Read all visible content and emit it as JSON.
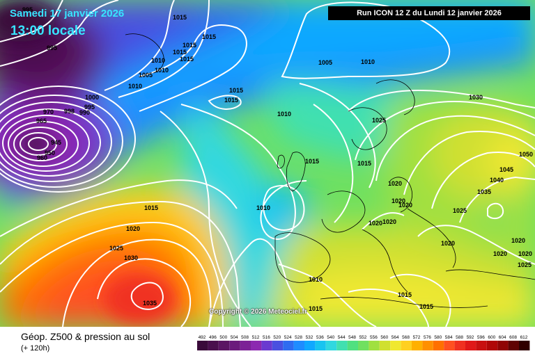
{
  "header": {
    "date": "Samedi 17 janvier 2026",
    "local_time": "13:00 locale",
    "run": "Run ICON 12 Z du Lundi 12 janvier 2026"
  },
  "map": {
    "copyright": "Copyright © 2026 Meteociel.fr",
    "pressure_labels": [
      "995",
      "1015",
      "995",
      "1015",
      "1015",
      "1015",
      "1010",
      "1015",
      "1010",
      "1005",
      "1010",
      "1000",
      "990",
      "995",
      "998",
      "970",
      "965",
      "945",
      "950",
      "960",
      "1015",
      "1015",
      "1005",
      "1010",
      "1030",
      "1010",
      "1025",
      "1015",
      "1015",
      "1020",
      "1010",
      "1020",
      "1020",
      "1020",
      "1020",
      "1050",
      "1045",
      "1040",
      "1035",
      "1025",
      "1020",
      "1020",
      "1020",
      "1020",
      "1025",
      "1015",
      "1020",
      "1025",
      "1030",
      "1035",
      "1010",
      "1015",
      "1015",
      "1015"
    ]
  },
  "footer": {
    "title": "Géop. Z500 & pression au sol",
    "subtitle": "(+ 120h)"
  },
  "legend": {
    "labels": [
      "492",
      "496",
      "500",
      "504",
      "508",
      "512",
      "516",
      "520",
      "524",
      "528",
      "532",
      "536",
      "540",
      "544",
      "548",
      "552",
      "556",
      "560",
      "564",
      "568",
      "572",
      "576",
      "580",
      "584",
      "588",
      "592",
      "596",
      "600",
      "604",
      "608",
      "612"
    ],
    "colors": [
      "#3a0a3a",
      "#4a0f4d",
      "#5b1563",
      "#6b1b7c",
      "#7c2196",
      "#8c28b0",
      "#6a3ad0",
      "#4a50e0",
      "#2f6cf0",
      "#1f8cff",
      "#10a8ff",
      "#18c4f0",
      "#30d8e0",
      "#40e0b0",
      "#50e080",
      "#70e060",
      "#a0e040",
      "#d0e030",
      "#f0e830",
      "#ffd020",
      "#ffb000",
      "#ff9000",
      "#ff7000",
      "#ff5020",
      "#f03020",
      "#e01818",
      "#c81010",
      "#b00808",
      "#900404",
      "#600202",
      "#300000"
    ]
  }
}
